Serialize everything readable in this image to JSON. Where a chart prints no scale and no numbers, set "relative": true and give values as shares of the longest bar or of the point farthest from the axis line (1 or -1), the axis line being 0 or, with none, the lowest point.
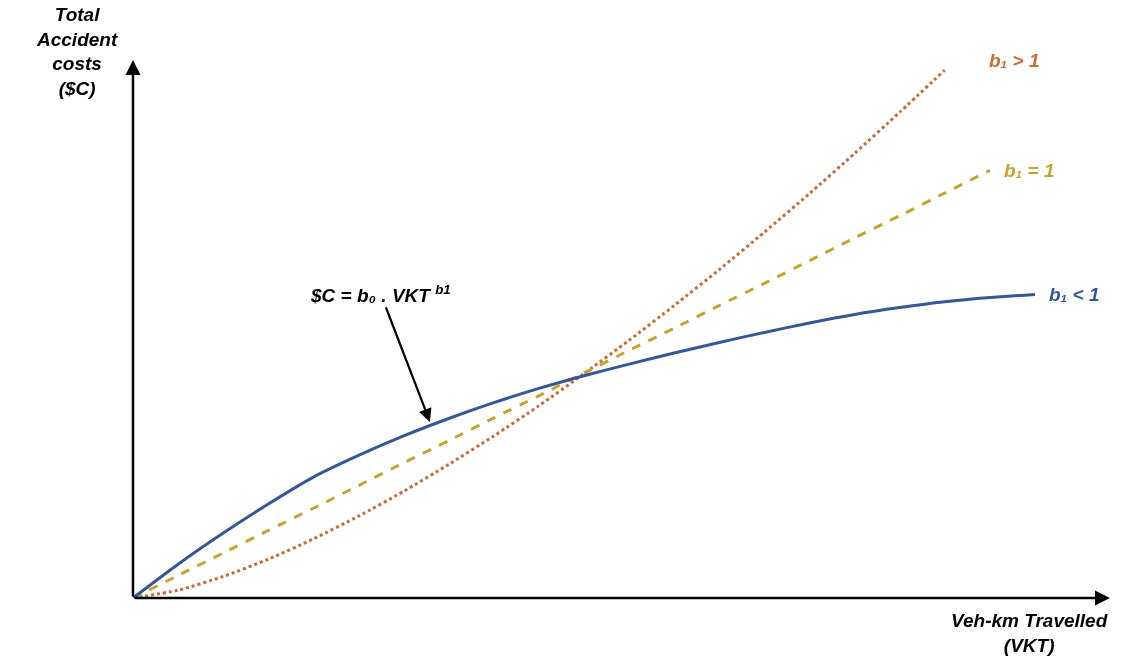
{
  "chart_data": {
    "type": "line",
    "relative": true,
    "xlabel": "Veh-km Travelled\n(VKT)",
    "ylabel": "Total\nAccident\ncosts\n($C)",
    "categories": [
      null,
      null,
      null,
      null,
      null,
      null,
      null,
      null,
      null,
      null,
      null,
      null,
      null,
      null,
      null,
      null,
      null,
      null,
      null,
      null,
      null
    ],
    "series": [
      {
        "name": "b₁ > 1",
        "color": "#d2692c",
        "line_style": "dotted",
        "values": [
          0,
          0.0148,
          0.0407,
          0.0735,
          0.112,
          0.155,
          0.202,
          0.253,
          0.307,
          0.364,
          0.425,
          0.488,
          0.554,
          0.622,
          0.693,
          0.766,
          0.842,
          0.92,
          1,
          null,
          null
        ]
      },
      {
        "name": "b₁ = 1",
        "color": "#c9a227",
        "line_style": "dashed",
        "values": [
          0,
          0.0426,
          0.0852,
          0.128,
          0.17,
          0.213,
          0.256,
          0.298,
          0.341,
          0.383,
          0.426,
          0.469,
          0.511,
          0.554,
          0.596,
          0.639,
          0.682,
          0.724,
          0.767,
          0.81,
          null
        ]
      },
      {
        "name": "b₁ < 1",
        "color": "#2f58a0",
        "line_style": "solid",
        "values": [
          0,
          0.064,
          0.123,
          0.178,
          0.229,
          0.27,
          0.307,
          0.34,
          0.37,
          0.397,
          0.421,
          0.443,
          0.464,
          0.484,
          0.503,
          0.521,
          0.537,
          0.55,
          0.561,
          0.569,
          0.575
        ]
      }
    ],
    "annotations": [
      "$C = b₀ . VKT $^{b1}$"
    ]
  }
}
